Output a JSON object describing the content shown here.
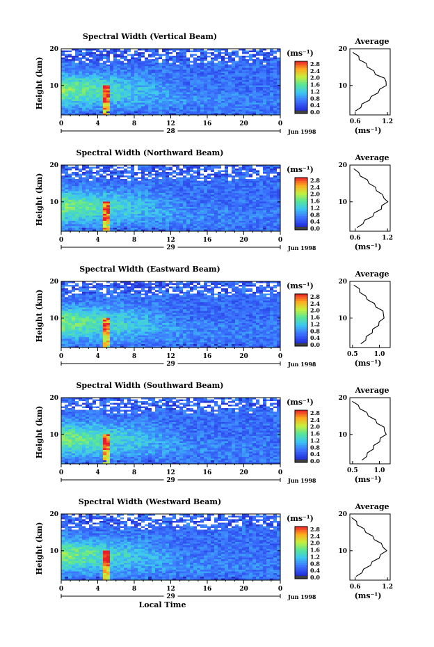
{
  "chart_data": [
    {
      "type": "heatmap",
      "title": "Spectral Width (Vertical Beam)",
      "ylabel": "Height (km)",
      "xlim": [
        0,
        24
      ],
      "ylim": [
        2,
        20
      ],
      "x_ticks": [
        "0",
        "4",
        "8",
        "12",
        "16",
        "20",
        "0"
      ],
      "y_ticks": [
        "20",
        "10"
      ],
      "day_label": "28",
      "date_label": "Jun 1998",
      "colorbar": {
        "unit": "(ms⁻¹)",
        "ticks": [
          "2.8",
          "2.4",
          "2.0",
          "1.6",
          "1.2",
          "0.8",
          "0.4",
          "0.0"
        ]
      },
      "average": {
        "title": "Average",
        "xlabel": "(ms⁻¹)",
        "x_ticks": [
          "0.6",
          "1.2"
        ],
        "y_ticks": [
          "20",
          "10"
        ],
        "xlim": [
          0.5,
          1.25
        ],
        "ylim": [
          2,
          20
        ],
        "heights": [
          3,
          4,
          5,
          6,
          7,
          8,
          9,
          10,
          11,
          12,
          13,
          14,
          15,
          16,
          17,
          18,
          19
        ],
        "values": [
          0.62,
          0.68,
          0.75,
          0.84,
          0.92,
          1.0,
          1.08,
          1.15,
          1.2,
          1.12,
          1.0,
          0.92,
          0.85,
          0.78,
          0.7,
          0.64,
          0.58
        ]
      }
    },
    {
      "type": "heatmap",
      "title": "Spectral Width (Northward Beam)",
      "ylabel": "Height (km)",
      "xlim": [
        0,
        24
      ],
      "ylim": [
        2,
        20
      ],
      "x_ticks": [
        "0",
        "4",
        "8",
        "12",
        "16",
        "20",
        "0"
      ],
      "y_ticks": [
        "20",
        "10"
      ],
      "day_label": "29",
      "date_label": "Jun 1998",
      "colorbar": {
        "unit": "(ms⁻¹)",
        "ticks": [
          "2.8",
          "2.4",
          "2.0",
          "1.6",
          "1.2",
          "0.8",
          "0.4",
          "0.0"
        ]
      },
      "average": {
        "title": "Average",
        "xlabel": "(ms⁻¹)",
        "x_ticks": [
          "0.6",
          "1.2"
        ],
        "y_ticks": [
          "20",
          "10"
        ],
        "xlim": [
          0.5,
          1.25
        ],
        "ylim": [
          2,
          20
        ],
        "heights": [
          3,
          4,
          5,
          6,
          7,
          8,
          9,
          10,
          11,
          12,
          13,
          14,
          15,
          16,
          17,
          18,
          19
        ],
        "values": [
          0.66,
          0.72,
          0.8,
          0.9,
          0.98,
          1.06,
          1.12,
          1.18,
          1.16,
          1.08,
          1.02,
          0.95,
          0.88,
          0.8,
          0.72,
          0.64,
          0.6
        ]
      }
    },
    {
      "type": "heatmap",
      "title": "Spectral Width (Eastward Beam)",
      "ylabel": "Height (km)",
      "xlim": [
        0,
        24
      ],
      "ylim": [
        2,
        20
      ],
      "x_ticks": [
        "0",
        "4",
        "8",
        "12",
        "16",
        "20",
        "0"
      ],
      "y_ticks": [
        "20",
        "10"
      ],
      "day_label": "29",
      "date_label": "Jun 1998",
      "colorbar": {
        "unit": "(ms⁻¹)",
        "ticks": [
          "2.8",
          "2.4",
          "2.0",
          "1.6",
          "1.2",
          "0.8",
          "0.4",
          "0.0"
        ]
      },
      "average": {
        "title": "Average",
        "xlabel": "(ms⁻¹)",
        "x_ticks": [
          "0.5",
          "1.0"
        ],
        "y_ticks": [
          "20",
          "10"
        ],
        "xlim": [
          0.45,
          1.2
        ],
        "ylim": [
          2,
          20
        ],
        "heights": [
          3,
          4,
          5,
          6,
          7,
          8,
          9,
          10,
          11,
          12,
          13,
          14,
          15,
          16,
          17,
          18,
          19
        ],
        "values": [
          0.68,
          0.72,
          0.78,
          0.84,
          0.9,
          0.96,
          1.02,
          1.06,
          1.1,
          1.04,
          0.96,
          0.88,
          0.8,
          0.72,
          0.66,
          0.6,
          0.55
        ]
      }
    },
    {
      "type": "heatmap",
      "title": "Spectral Width (Southward Beam)",
      "ylabel": "Height (km)",
      "xlim": [
        0,
        24
      ],
      "ylim": [
        2,
        20
      ],
      "x_ticks": [
        "0",
        "4",
        "8",
        "12",
        "16",
        "20",
        "0"
      ],
      "y_ticks": [
        "20",
        "10"
      ],
      "day_label": "29",
      "date_label": "Jun 1998",
      "colorbar": {
        "unit": "(ms⁻¹)",
        "ticks": [
          "2.8",
          "2.4",
          "2.0",
          "1.6",
          "1.2",
          "0.8",
          "0.4",
          "0.0"
        ]
      },
      "average": {
        "title": "Average",
        "xlabel": "(ms⁻¹)",
        "x_ticks": [
          "0.5",
          "1.0"
        ],
        "y_ticks": [
          "20",
          "10"
        ],
        "xlim": [
          0.45,
          1.2
        ],
        "ylim": [
          2,
          20
        ],
        "heights": [
          3,
          4,
          5,
          6,
          7,
          8,
          9,
          10,
          11,
          12,
          13,
          14,
          15,
          16,
          17,
          18,
          19
        ],
        "values": [
          0.7,
          0.74,
          0.8,
          0.86,
          0.92,
          0.98,
          1.04,
          1.1,
          1.12,
          1.06,
          0.98,
          0.9,
          0.82,
          0.74,
          0.66,
          0.58,
          0.52
        ]
      }
    },
    {
      "type": "heatmap",
      "title": "Spectral Width (Westward Beam)",
      "ylabel": "Height (km)",
      "xlim": [
        0,
        24
      ],
      "ylim": [
        2,
        20
      ],
      "x_ticks": [
        "0",
        "4",
        "8",
        "12",
        "16",
        "20",
        "0"
      ],
      "y_ticks": [
        "20",
        "10"
      ],
      "day_label": "29",
      "date_label": "Jun 1998",
      "xlabel": "Local Time",
      "colorbar": {
        "unit": "(ms⁻¹)",
        "ticks": [
          "2.8",
          "2.4",
          "2.0",
          "1.6",
          "1.2",
          "0.8",
          "0.4",
          "0.0"
        ]
      },
      "average": {
        "title": "Average",
        "xlabel": "(ms⁻¹)",
        "x_ticks": [
          "0.6",
          "1.2"
        ],
        "y_ticks": [
          "20",
          "10"
        ],
        "xlim": [
          0.5,
          1.25
        ],
        "ylim": [
          2,
          20
        ],
        "heights": [
          3,
          4,
          5,
          6,
          7,
          8,
          9,
          10,
          11,
          12,
          13,
          14,
          15,
          16,
          17,
          18,
          19
        ],
        "values": [
          0.64,
          0.7,
          0.78,
          0.86,
          0.94,
          1.02,
          1.1,
          1.16,
          1.14,
          1.06,
          0.98,
          0.9,
          0.82,
          0.74,
          0.66,
          0.6,
          0.56
        ]
      }
    }
  ]
}
